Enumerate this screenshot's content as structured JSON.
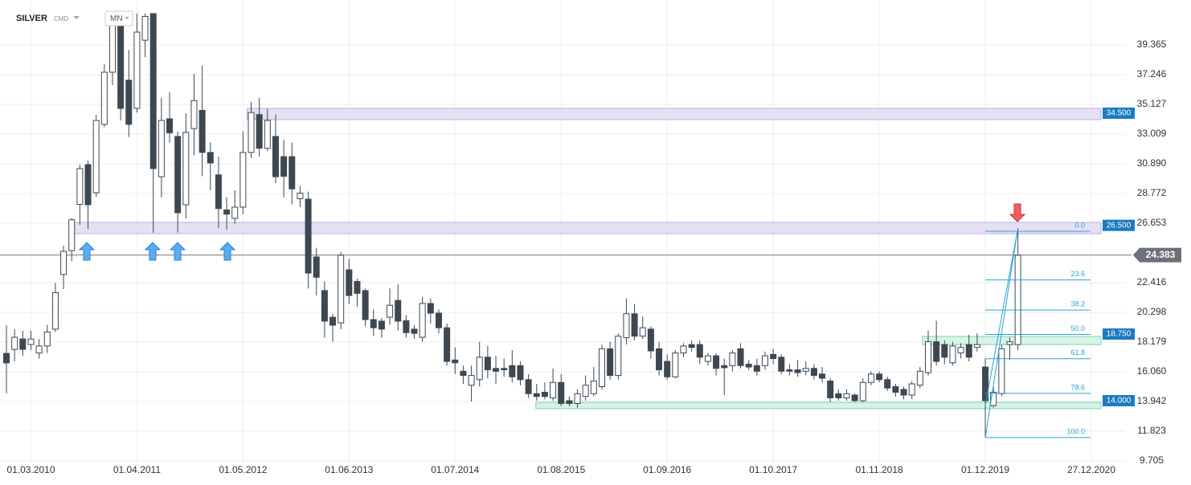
{
  "chart_data": {
    "type": "candlestick",
    "title": "SILVER",
    "subtitle": "CMD",
    "timeframe": "MN",
    "open": [
      17.37,
      17.66,
      18.4,
      18.0,
      17.4,
      17.9,
      19.1,
      23.0,
      24.7,
      28.0,
      30.83,
      28.83,
      33.7,
      37.42,
      40.85,
      36.85,
      34.84,
      39.7,
      41.6,
      29.97,
      34.1,
      32.84,
      27.97,
      33.4,
      34.7,
      31.7,
      30.1,
      27.6,
      27.0,
      27.8,
      31.7,
      34.4,
      32.0,
      32.84,
      31.4,
      31.4,
      28.4,
      28.37,
      24.25,
      21.85,
      19.95,
      19.55,
      23.33,
      22.5,
      21.85,
      19.78,
      19.67,
      19.95,
      21.15,
      19.7,
      19.1,
      18.52,
      20.93,
      20.24,
      19.2,
      16.9,
      16.1,
      15.1,
      15.5,
      17.1,
      16.3,
      16.3,
      16.5,
      16.5,
      15.5,
      14.5,
      14.6,
      14.2,
      15.3,
      14.0,
      13.8,
      14.3,
      14.5,
      15.0,
      17.7,
      15.8,
      18.5,
      20.2,
      18.6,
      19.1,
      17.7,
      16.8,
      15.7,
      17.4,
      18.0,
      18.0,
      16.8,
      17.2,
      16.5,
      16.5,
      17.7,
      16.6,
      16.5,
      16.5,
      17.3,
      17.1,
      16.2,
      16.2,
      16.1,
      16.3,
      15.9,
      15.4,
      14.5,
      14.2,
      14.4,
      14.0,
      15.3,
      15.9,
      15.5,
      15.0,
      14.8,
      14.4,
      15.1,
      16.0,
      18.2,
      18.0,
      16.7,
      17.4,
      18.0,
      17.8,
      16.4,
      13.65,
      14.5,
      18.0,
      18.0
    ],
    "high": [
      19.38,
      19.1,
      19.0,
      19.0,
      18.4,
      19.4,
      22.4,
      25.05,
      27.0,
      30.83,
      31.12,
      34.38,
      37.99,
      41.6,
      41.6,
      39.0,
      41.6,
      41.6,
      41.6,
      35.59,
      36.0,
      33.2,
      34.5,
      37.3,
      37.9,
      32.4,
      31.4,
      28.5,
      29.0,
      33.2,
      35.3,
      35.6,
      34.8,
      34.4,
      32.6,
      32.4,
      29.3,
      28.9,
      24.9,
      22.5,
      20.2,
      24.6,
      24.1,
      22.7,
      22.0,
      20.5,
      19.9,
      22.0,
      22.3,
      20.1,
      19.4,
      21.4,
      21.3,
      20.5,
      19.5,
      17.8,
      16.5,
      16.5,
      18.2,
      17.9,
      17.2,
      17.0,
      17.6,
      16.8,
      15.9,
      15.2,
      15.3,
      16.3,
      15.9,
      14.3,
      14.8,
      15.8,
      16.4,
      18.0,
      18.2,
      18.8,
      21.3,
      20.9,
      20.0,
      19.3,
      18.2,
      17.3,
      17.6,
      18.1,
      18.3,
      18.3,
      17.4,
      17.4,
      17.0,
      17.6,
      18.1,
      16.9,
      17.0,
      17.5,
      17.7,
      17.3,
      16.6,
      16.9,
      16.8,
      16.6,
      16.4,
      15.6,
      14.8,
      14.8,
      14.5,
      15.6,
      16.1,
      16.1,
      15.7,
      15.2,
      15.0,
      15.4,
      16.4,
      19.0,
      19.7,
      18.3,
      18.2,
      18.1,
      18.7,
      18.8,
      17.0,
      15.0,
      18.0,
      18.5,
      26.3
    ],
    "low": [
      14.52,
      16.81,
      17.2,
      17.6,
      17.0,
      17.4,
      18.9,
      21.96,
      23.96,
      26.54,
      26.25,
      28.54,
      33.5,
      36.5,
      33.98,
      32.8,
      34.55,
      38.5,
      25.97,
      28.5,
      32.4,
      26.0,
      27.0,
      31.5,
      30.0,
      29.0,
      26.3,
      26.2,
      26.6,
      27.3,
      31.3,
      31.4,
      31.8,
      29.5,
      28.5,
      28.0,
      27.8,
      22.0,
      21.5,
      18.5,
      18.2,
      19.1,
      20.9,
      20.7,
      19.3,
      18.6,
      18.5,
      19.4,
      19.0,
      18.5,
      18.4,
      18.2,
      19.5,
      18.8,
      16.5,
      15.9,
      15.2,
      13.94,
      15.0,
      15.6,
      15.2,
      15.7,
      15.3,
      15.1,
      14.2,
      14.0,
      14.1,
      14.0,
      13.6,
      13.6,
      13.5,
      14.0,
      14.3,
      14.8,
      15.5,
      15.5,
      18.0,
      18.3,
      18.4,
      17.0,
      15.8,
      15.5,
      15.6,
      17.1,
      17.5,
      16.6,
      16.5,
      15.8,
      14.4,
      16.1,
      16.3,
      16.2,
      15.8,
      16.2,
      16.6,
      15.9,
      15.8,
      15.7,
      15.8,
      15.5,
      15.3,
      13.9,
      14.0,
      14.0,
      13.9,
      13.9,
      15.1,
      15.3,
      14.7,
      14.3,
      14.1,
      14.1,
      14.9,
      15.8,
      16.5,
      16.6,
      16.5,
      17.0,
      16.8,
      17.5,
      11.37,
      13.5,
      14.3,
      16.9,
      17.6
    ],
    "close": [
      16.69,
      18.52,
      17.66,
      18.4,
      17.9,
      18.9,
      21.7,
      24.65,
      26.9,
      30.55,
      27.97,
      33.98,
      37.42,
      41.4,
      34.84,
      33.7,
      40.28,
      41.4,
      30.55,
      33.98,
      33.1,
      27.4,
      33.13,
      35.4,
      31.7,
      30.95,
      27.7,
      27.3,
      27.8,
      31.7,
      34.55,
      32.0,
      33.98,
      29.97,
      30.0,
      29.1,
      28.8,
      23.1,
      22.8,
      19.67,
      19.38,
      24.37,
      21.5,
      21.65,
      19.78,
      19.2,
      19.1,
      20.8,
      19.67,
      18.85,
      18.8,
      20.93,
      20.24,
      19.2,
      16.8,
      16.7,
      15.8,
      15.8,
      17.1,
      16.2,
      16.1,
      16.2,
      15.7,
      15.5,
      14.5,
      14.3,
      14.3,
      15.3,
      13.8,
      13.8,
      14.5,
      15.1,
      15.4,
      17.7,
      15.8,
      18.6,
      20.2,
      18.6,
      19.2,
      17.55,
      16.2,
      15.7,
      17.4,
      17.9,
      17.8,
      17.1,
      17.2,
      16.3,
      16.35,
      17.4,
      16.5,
      16.4,
      16.1,
      17.2,
      17.0,
      16.1,
      16.1,
      16.0,
      16.3,
      15.8,
      15.6,
      14.2,
      14.2,
      14.5,
      14.0,
      15.3,
      15.9,
      15.5,
      14.9,
      14.6,
      14.4,
      15.2,
      16.1,
      18.2,
      16.8,
      17.1,
      17.9,
      17.8,
      17.1,
      18.0,
      14.0,
      14.6,
      17.7,
      18.2,
      24.37
    ],
    "up_color": "#ffffff",
    "down_color": "#3d4852",
    "xlim": [
      -0.79,
      137.14
    ],
    "xticks": [
      {
        "value": 3,
        "label": "01.03.2010"
      },
      {
        "value": 16,
        "label": "01.04.2011"
      },
      {
        "value": 29,
        "label": "01.05.2012"
      },
      {
        "value": 42,
        "label": "01.06.2013"
      },
      {
        "value": 55,
        "label": "01.07.2014"
      },
      {
        "value": 68,
        "label": "01.08.2015"
      },
      {
        "value": 81,
        "label": "01.09.2016"
      },
      {
        "value": 94,
        "label": "01.10.2017"
      },
      {
        "value": 107,
        "label": "01.11.2018"
      },
      {
        "value": 120,
        "label": "01.12.2019"
      },
      {
        "value": 133,
        "label": "27.12.2020"
      }
    ],
    "ylim": [
      9.59,
      42.57
    ],
    "yticks": [
      39.365,
      37.246,
      35.127,
      33.009,
      {
        "value": 30.89,
        "label": "30.890"
      },
      28.772,
      26.653,
      22.416,
      20.298,
      18.179,
      {
        "value": 16.06,
        "label": "16.060"
      },
      13.942,
      11.823,
      9.705
    ],
    "grid": true,
    "zones": [
      {
        "value": 34.5,
        "label": "34.500",
        "low": 34.04,
        "high": 34.84,
        "from": 29.5,
        "color": "#e6e0f5"
      },
      {
        "value": 26.5,
        "label": "26.500",
        "low": 25.91,
        "high": 26.71,
        "from": 7.9,
        "color": "#e6e0f5"
      },
      {
        "value": 18.75,
        "label": "18.750",
        "low": 18.0,
        "high": 18.58,
        "from": 112.3,
        "color": "#d7f3e6"
      },
      {
        "value": 14,
        "label": "14.000",
        "low": 13.43,
        "high": 13.88,
        "from": 64.9,
        "color": "#d7f3e6"
      }
    ],
    "last_price": 24.383,
    "fib": {
      "high": 26.08,
      "low": 11.37,
      "color": "#29a3d6",
      "levels": [
        {
          "value": 0,
          "label": "0.0"
        },
        23.6,
        38.2,
        {
          "value": 50,
          "label": "50.0"
        },
        61.8,
        78.6,
        {
          "value": 100,
          "label": "100.0"
        }
      ]
    }
  }
}
